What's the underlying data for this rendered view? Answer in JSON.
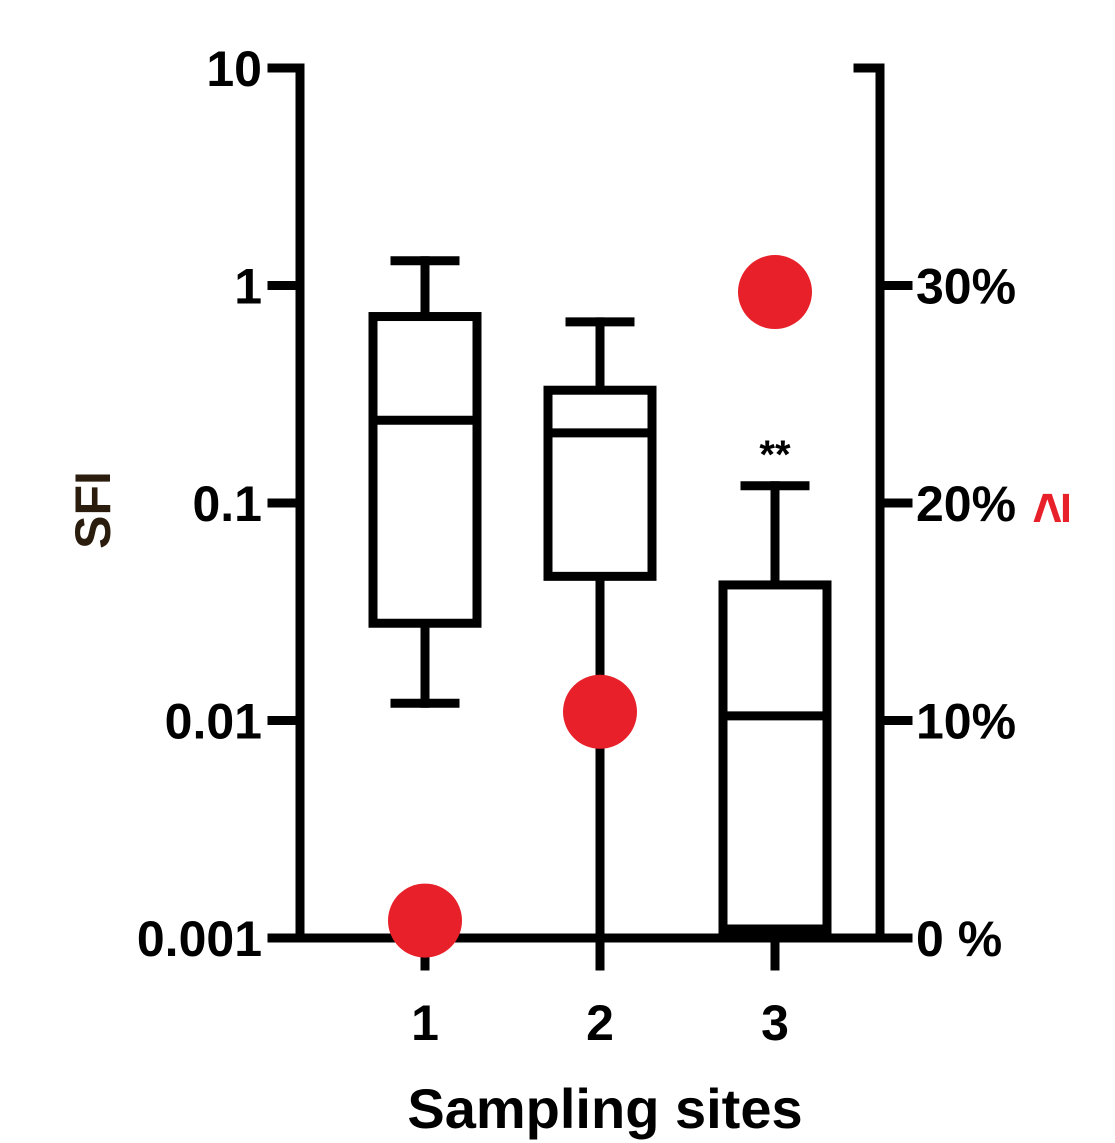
{
  "chart_data": {
    "type": "box",
    "xlabel": "Sampling sites",
    "ylabel": "SFI",
    "y2label": "≥",
    "categories": [
      "1",
      "2",
      "3"
    ],
    "y_axis": {
      "scale": "log",
      "range": [
        0.001,
        10
      ],
      "ticks": [
        0.001,
        0.01,
        0.1,
        1,
        10
      ],
      "tick_labels": [
        "0.001",
        "0.01",
        "0.1",
        "1",
        "10"
      ]
    },
    "y2_axis": {
      "scale": "linear",
      "range": [
        0,
        40
      ],
      "ticks": [
        0,
        10,
        20,
        30
      ],
      "tick_labels": [
        "0 %",
        "10%",
        "20%",
        "30%"
      ]
    },
    "boxes": [
      {
        "category": "1",
        "whisker_low": 0.012,
        "q1": 0.028,
        "median": 0.24,
        "q3": 0.72,
        "whisker_high": 1.3
      },
      {
        "category": "2",
        "whisker_low": 0.001,
        "q1": 0.046,
        "median": 0.21,
        "q3": 0.33,
        "whisker_high": 0.68
      },
      {
        "category": "3",
        "whisker_low": 0.001,
        "q1": 0.0011,
        "median": 0.0105,
        "q3": 0.042,
        "whisker_high": 0.12
      }
    ],
    "points": {
      "color": "#e8202a",
      "axis": "y2",
      "values": [
        {
          "category": "1",
          "value": 0.8
        },
        {
          "category": "2",
          "value": 10.4
        },
        {
          "category": "3",
          "value": 29.7
        }
      ]
    },
    "annotations": [
      {
        "category": "3",
        "text": "**"
      }
    ],
    "grid": false,
    "legend": "none"
  }
}
